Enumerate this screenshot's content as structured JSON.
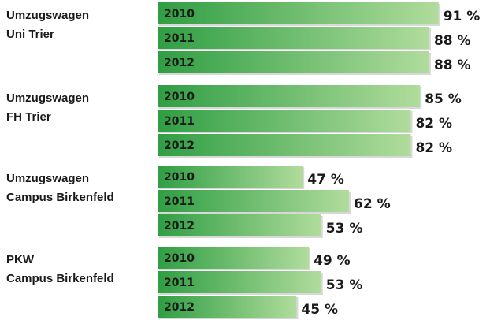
{
  "chart_data": {
    "type": "bar",
    "orientation": "horizontal",
    "categories": [
      [
        "Umzugswagen",
        "Uni Trier"
      ],
      [
        "Umzugswagen",
        "FH Trier"
      ],
      [
        "Umzugswagen",
        "Campus Birkenfeld"
      ],
      [
        "PKW",
        "Campus Birkenfeld"
      ]
    ],
    "series": [
      {
        "name": "2010",
        "color": "#3aa54a",
        "values": [
          91,
          85,
          47,
          49
        ],
        "value_labels": [
          "91 %",
          "85 %",
          "47 %",
          "49 %"
        ]
      },
      {
        "name": "2011",
        "color": "#3aa54a",
        "values": [
          88,
          82,
          62,
          53
        ],
        "value_labels": [
          "88 %",
          "82 %",
          "62 %",
          "53 %"
        ]
      },
      {
        "name": "2012",
        "color": "#3aa54a",
        "values": [
          88,
          82,
          53,
          45
        ],
        "value_labels": [
          "88 %",
          "82 %",
          "53 %",
          "45 %"
        ]
      }
    ],
    "xlim": [
      0,
      100
    ]
  }
}
